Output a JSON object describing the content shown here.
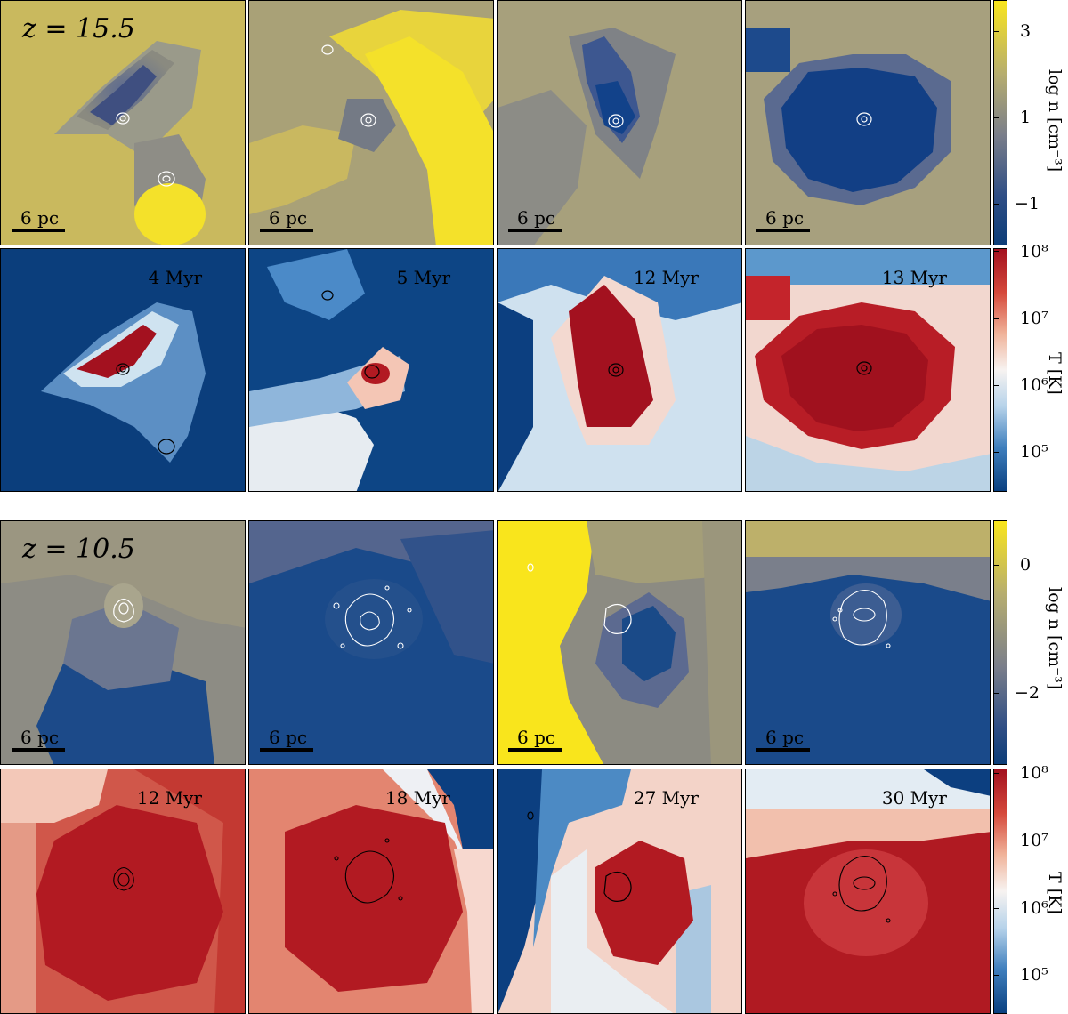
{
  "colors": {
    "density_low": "#0c3d78",
    "density_mid": "#7a7e8a",
    "density_high": "#f9e51c",
    "temp_low": "#0a4080",
    "temp_mid": "#f7f3f1",
    "temp_high": "#a3111f"
  },
  "blocks": [
    {
      "redshift": "z = 15.5",
      "density_panels": [
        {
          "scale_label": "6 pc",
          "style": "yellow-with-dark-filament"
        },
        {
          "scale_label": "6 pc",
          "style": "yellow-streams"
        },
        {
          "scale_label": "6 pc",
          "style": "grey-blue-core"
        },
        {
          "scale_label": "6 pc",
          "style": "blue-cross-core"
        }
      ],
      "temperature_panels": [
        {
          "age": "4 Myr"
        },
        {
          "age": "5 Myr"
        },
        {
          "age": "12 Myr"
        },
        {
          "age": "13 Myr"
        }
      ],
      "density_colorbar": {
        "label": "log n [cm⁻³]",
        "ticks": [
          "3",
          "1",
          "−1"
        ]
      },
      "temperature_colorbar": {
        "label": "T [K]",
        "ticks": [
          "10⁸",
          "10⁷",
          "10⁶",
          "10⁵"
        ]
      }
    },
    {
      "redshift": "z = 10.5",
      "density_panels": [
        {
          "scale_label": "6 pc",
          "style": "grey-blue"
        },
        {
          "scale_label": "6 pc",
          "style": "blue-clumpy"
        },
        {
          "scale_label": "6 pc",
          "style": "yellow-left-blue-core"
        },
        {
          "scale_label": "6 pc",
          "style": "blue-with-yellow-top"
        }
      ],
      "temperature_panels": [
        {
          "age": "12 Myr"
        },
        {
          "age": "18 Myr"
        },
        {
          "age": "27 Myr"
        },
        {
          "age": "30 Myr"
        }
      ],
      "density_colorbar": {
        "label": "log n [cm⁻³]",
        "ticks": [
          "0",
          "−2"
        ]
      },
      "temperature_colorbar": {
        "label": "T [K]",
        "ticks": [
          "10⁸",
          "10⁷",
          "10⁶",
          "10⁵"
        ]
      }
    }
  ]
}
